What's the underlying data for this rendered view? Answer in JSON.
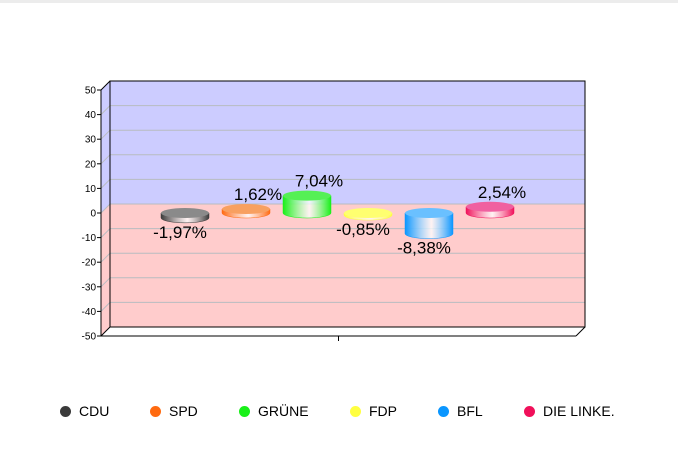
{
  "chart_data": {
    "type": "bar",
    "title": "",
    "xlabel": "",
    "ylabel": "",
    "ylim": [
      -50,
      50
    ],
    "yticks": [
      "50",
      "40",
      "30",
      "20",
      "10",
      "0",
      "-10",
      "-20",
      "-30",
      "-40",
      "-50"
    ],
    "categories": [
      "CDU",
      "SPD",
      "GRÜNE",
      "FDP",
      "BFL",
      "DIE LINKE."
    ],
    "values": [
      -1.97,
      1.62,
      7.04,
      -0.85,
      -8.38,
      2.54
    ],
    "data_labels": [
      "-1,97%",
      "1,62%",
      "7,04%",
      "-0,85%",
      "-8,38%",
      "2,54%"
    ],
    "colors": [
      "#3a3a3a",
      "#ff6a10",
      "#19f019",
      "#ffff40",
      "#0a96ff",
      "#f0105a"
    ],
    "bar_colors": [
      "#8a8a8a",
      "#f8a060",
      "#55f055",
      "#ffff70",
      "#6ac0ff",
      "#f060a0"
    ],
    "positive_band_color": "#ccccff",
    "negative_band_color": "#ffcccc",
    "grid": true,
    "legend_position": "bottom"
  }
}
